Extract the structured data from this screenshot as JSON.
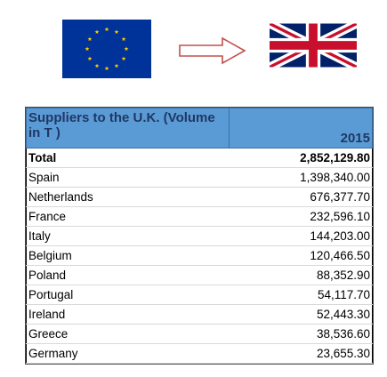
{
  "flags": {
    "from": "eu-flag-icon",
    "to": "uk-flag-icon",
    "arrow": "right-arrow-icon"
  },
  "colors": {
    "eu_blue": "#003399",
    "eu_gold": "#ffcc00",
    "header_blue": "#5b9bd5",
    "arrow_red": "#c0504d"
  },
  "table": {
    "header_label": "Suppliers to the U.K. (Volume in T )",
    "header_year": "2015",
    "rows": [
      {
        "name": "Total",
        "value": "2,852,129.80"
      },
      {
        "name": "Spain",
        "value": "1,398,340.00"
      },
      {
        "name": "Netherlands",
        "value": "676,377.70"
      },
      {
        "name": "France",
        "value": "232,596.10"
      },
      {
        "name": "Italy",
        "value": "144,203.00"
      },
      {
        "name": "Belgium",
        "value": "120,466.50"
      },
      {
        "name": "Poland",
        "value": "88,352.90"
      },
      {
        "name": "Portugal",
        "value": "54,117.70"
      },
      {
        "name": "Ireland",
        "value": "52,443.30"
      },
      {
        "name": "Greece",
        "value": "38,536.60"
      },
      {
        "name": "Germany",
        "value": "23,655.30"
      }
    ]
  }
}
